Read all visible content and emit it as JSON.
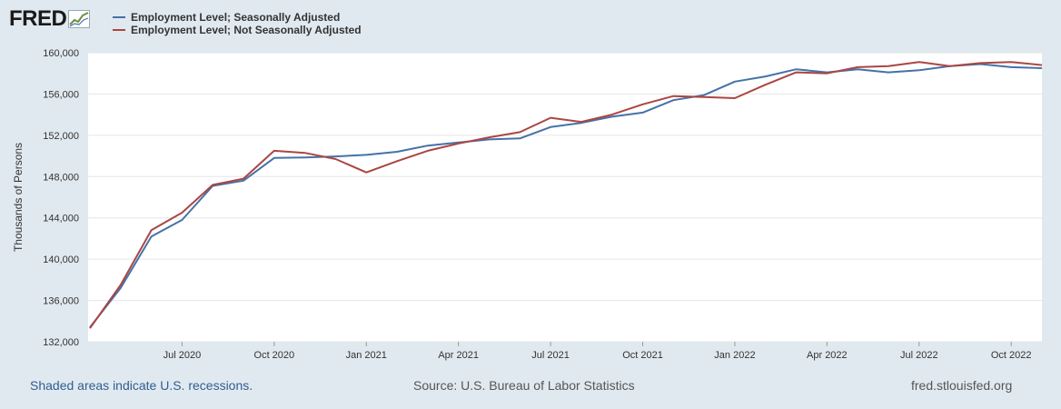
{
  "logo": {
    "text": "FRED",
    "icon": "chart-line-icon"
  },
  "colors": {
    "background": "#e1e9f0",
    "plot_background": "#ffffff",
    "grid": "#e6e6e6",
    "series_sa": "#4572a7",
    "series_nsa": "#aa4643",
    "footer_link": "#2f5f8f"
  },
  "chart_data": {
    "type": "line",
    "title": "",
    "xlabel": "",
    "ylabel": "Thousands of Persons",
    "ylim": [
      132000,
      160000
    ],
    "yticks": [
      132000,
      136000,
      140000,
      144000,
      148000,
      152000,
      156000,
      160000
    ],
    "ytick_labels": [
      "132,000",
      "136,000",
      "140,000",
      "144,000",
      "148,000",
      "152,000",
      "156,000",
      "160,000"
    ],
    "x": [
      "2020-04",
      "2020-05",
      "2020-06",
      "2020-07",
      "2020-08",
      "2020-09",
      "2020-10",
      "2020-11",
      "2020-12",
      "2021-01",
      "2021-02",
      "2021-03",
      "2021-04",
      "2021-05",
      "2021-06",
      "2021-07",
      "2021-08",
      "2021-09",
      "2021-10",
      "2021-11",
      "2021-12",
      "2022-01",
      "2022-02",
      "2022-03",
      "2022-04",
      "2022-05",
      "2022-06",
      "2022-07",
      "2022-08",
      "2022-09",
      "2022-10",
      "2022-11"
    ],
    "xtick_labels": [
      "Jul 2020",
      "Oct 2020",
      "Jan 2021",
      "Apr 2021",
      "Jul 2021",
      "Oct 2021",
      "Jan 2022",
      "Apr 2022",
      "Jul 2022",
      "Oct 2022"
    ],
    "xtick_indices": [
      3,
      6,
      9,
      12,
      15,
      18,
      21,
      24,
      27,
      30
    ],
    "grid": true,
    "legend_position": "top-left",
    "series": [
      {
        "name": "Employment Level; Seasonally Adjusted",
        "color": "#4572a7",
        "values": [
          133400,
          137200,
          142200,
          143800,
          147100,
          147600,
          149800,
          149850,
          149950,
          150100,
          150400,
          151000,
          151300,
          151600,
          151700,
          152800,
          153200,
          153800,
          154200,
          155400,
          155900,
          157200,
          157700,
          158400,
          158100,
          158400,
          158100,
          158300,
          158700,
          158900,
          158600,
          158500
        ]
      },
      {
        "name": "Employment Level; Not Seasonally Adjusted",
        "color": "#aa4643",
        "values": [
          133300,
          137500,
          142800,
          144500,
          147200,
          147800,
          150500,
          150300,
          149700,
          148400,
          149500,
          150500,
          151200,
          151800,
          152300,
          153700,
          153300,
          154000,
          155000,
          155800,
          155700,
          155600,
          156900,
          158100,
          158000,
          158600,
          158700,
          159100,
          158700,
          159000,
          159100,
          158800
        ]
      }
    ]
  },
  "footer": {
    "left": "Shaded areas indicate U.S. recessions.",
    "center": "Source: U.S. Bureau of Labor Statistics",
    "right": "fred.stlouisfed.org"
  }
}
